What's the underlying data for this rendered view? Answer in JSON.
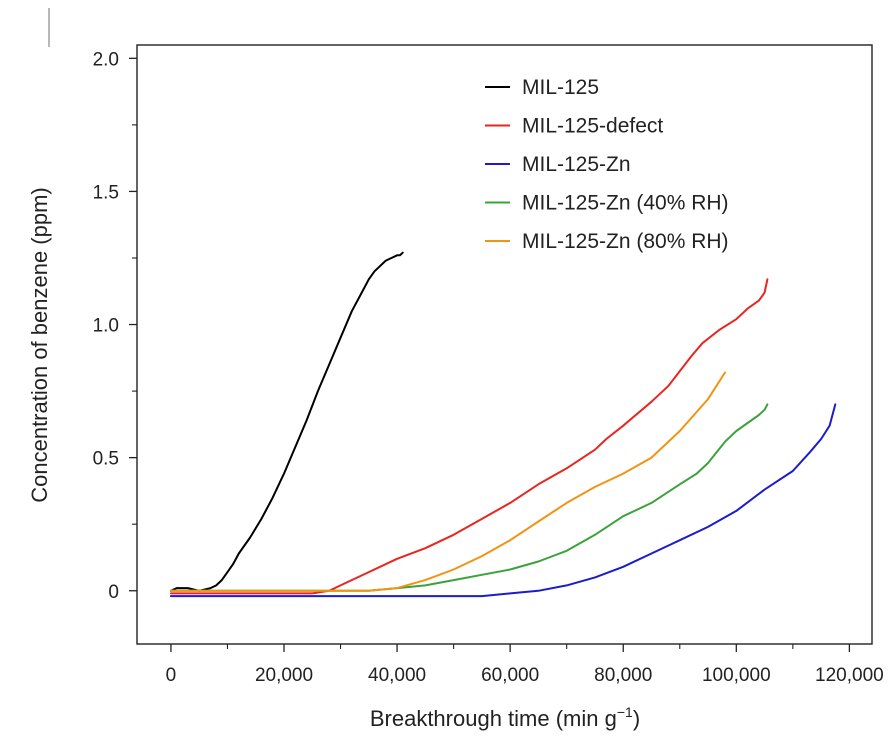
{
  "chart_data": {
    "type": "line",
    "xlabel": "Breakthrough time (min g",
    "xlabel_sup": "−1",
    "xlabel_end": ")",
    "ylabel": "Concentration of benzene (ppm)",
    "xlim": [
      -6000,
      124000
    ],
    "ylim": [
      -0.2,
      2.05
    ],
    "xticks": [
      0,
      20000,
      40000,
      60000,
      80000,
      100000,
      120000
    ],
    "xtick_labels": [
      "0",
      "20,000",
      "40,000",
      "60,000",
      "80,000",
      "100,000",
      "120,000"
    ],
    "yticks": [
      0,
      0.5,
      1.0,
      1.5,
      2.0
    ],
    "ytick_labels": [
      "0",
      "0.5",
      "1.0",
      "1.5",
      "2.0"
    ],
    "grid": false,
    "legend_position": "top-right",
    "series": [
      {
        "name": "MIL-125",
        "color": "#000000",
        "x": [
          0,
          1000,
          3000,
          5000,
          7000,
          8000,
          9000,
          10000,
          11000,
          12000,
          14000,
          16000,
          18000,
          20000,
          22000,
          24000,
          26000,
          28000,
          30000,
          32000,
          34000,
          35000,
          36000,
          37000,
          38000,
          39000,
          40000,
          40500,
          41000
        ],
        "y": [
          0.0,
          0.01,
          0.01,
          0.0,
          0.01,
          0.02,
          0.04,
          0.07,
          0.1,
          0.14,
          0.2,
          0.27,
          0.35,
          0.44,
          0.54,
          0.64,
          0.75,
          0.85,
          0.95,
          1.05,
          1.13,
          1.17,
          1.2,
          1.22,
          1.24,
          1.25,
          1.26,
          1.26,
          1.27
        ]
      },
      {
        "name": "MIL-125-defect",
        "color": "#e8251f",
        "x": [
          0,
          5000,
          10000,
          20000,
          25000,
          28000,
          30000,
          35000,
          40000,
          45000,
          50000,
          55000,
          60000,
          65000,
          70000,
          75000,
          77000,
          80000,
          85000,
          88000,
          92000,
          94000,
          97000,
          100000,
          102000,
          104000,
          105000,
          105500
        ],
        "y": [
          -0.01,
          -0.01,
          -0.01,
          -0.01,
          -0.01,
          0.0,
          0.02,
          0.07,
          0.12,
          0.16,
          0.21,
          0.27,
          0.33,
          0.4,
          0.46,
          0.53,
          0.57,
          0.62,
          0.71,
          0.77,
          0.88,
          0.93,
          0.98,
          1.02,
          1.06,
          1.09,
          1.12,
          1.17
        ]
      },
      {
        "name": "MIL-125-Zn",
        "color": "#1c1ccc",
        "x": [
          0,
          10000,
          20000,
          30000,
          40000,
          50000,
          55000,
          60000,
          65000,
          70000,
          75000,
          80000,
          85000,
          88000,
          90000,
          95000,
          100000,
          105000,
          110000,
          113000,
          115000,
          116500,
          117500
        ],
        "y": [
          -0.02,
          -0.02,
          -0.02,
          -0.02,
          -0.02,
          -0.02,
          -0.02,
          -0.01,
          0.0,
          0.02,
          0.05,
          0.09,
          0.14,
          0.17,
          0.19,
          0.24,
          0.3,
          0.38,
          0.45,
          0.52,
          0.57,
          0.62,
          0.7
        ]
      },
      {
        "name": "MIL-125-Zn (40% RH)",
        "color": "#3aa33a",
        "x": [
          0,
          10000,
          20000,
          30000,
          35000,
          40000,
          45000,
          50000,
          55000,
          60000,
          65000,
          70000,
          75000,
          80000,
          85000,
          90000,
          93000,
          95000,
          98000,
          100000,
          102000,
          104000,
          105000,
          105500
        ],
        "y": [
          0.0,
          0.0,
          0.0,
          0.0,
          0.0,
          0.01,
          0.02,
          0.04,
          0.06,
          0.08,
          0.11,
          0.15,
          0.21,
          0.28,
          0.33,
          0.4,
          0.44,
          0.48,
          0.56,
          0.6,
          0.63,
          0.66,
          0.68,
          0.7
        ]
      },
      {
        "name": "MIL-125-Zn (80% RH)",
        "color": "#f39312",
        "x": [
          0,
          10000,
          20000,
          30000,
          35000,
          40000,
          45000,
          50000,
          55000,
          60000,
          65000,
          70000,
          75000,
          80000,
          85000,
          90000,
          95000,
          98000
        ],
        "y": [
          0.0,
          0.0,
          0.0,
          0.0,
          0.0,
          0.01,
          0.04,
          0.08,
          0.13,
          0.19,
          0.26,
          0.33,
          0.39,
          0.44,
          0.5,
          0.6,
          0.72,
          0.82
        ]
      }
    ]
  }
}
